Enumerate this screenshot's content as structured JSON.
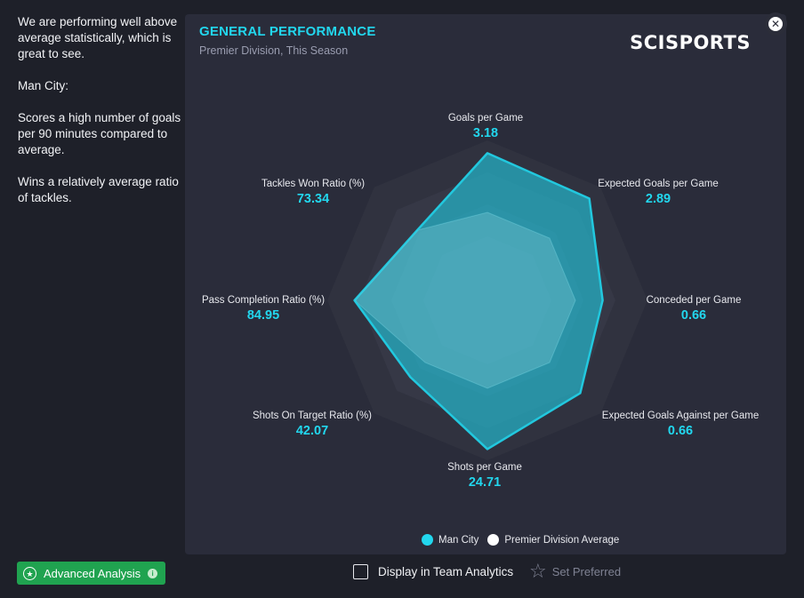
{
  "sidebar": {
    "paragraphs": [
      "We are performing well above average statistically, which is great to see.",
      "Man City:",
      "Scores a high number of goals per 90 minutes compared to average.",
      "Wins a relatively average ratio of tackles."
    ]
  },
  "panel": {
    "title": "GENERAL PERFORMANCE",
    "subtitle": "Premier Division, This Season",
    "brand": "SCISPORTS"
  },
  "radar": {
    "axes": [
      {
        "label": "Goals per Game",
        "value": "3.18"
      },
      {
        "label": "Expected Goals per Game",
        "value": "2.89"
      },
      {
        "label": "Conceded per Game",
        "value": "0.66"
      },
      {
        "label": "Expected Goals Against per Game",
        "value": "0.66"
      },
      {
        "label": "Shots per Game",
        "value": "24.71"
      },
      {
        "label": "Shots On Target Ratio (%)",
        "value": "42.07"
      },
      {
        "label": "Pass Completion Ratio (%)",
        "value": "84.95"
      },
      {
        "label": "Tackles Won Ratio (%)",
        "value": "73.34"
      }
    ],
    "team_levels": [
      0.92,
      0.9,
      0.72,
      0.82,
      0.93,
      0.68,
      0.83,
      0.62
    ],
    "average_levels": [
      0.55,
      0.55,
      0.55,
      0.55,
      0.55,
      0.55,
      0.83,
      0.62
    ],
    "colors": {
      "team": "#22c8de",
      "average": "#ffffff"
    }
  },
  "legend": {
    "team": "Man City",
    "average": "Premier Division Average"
  },
  "footer": {
    "advanced_label": "Advanced Analysis",
    "display_label": "Display in Team Analytics",
    "preferred_label": "Set Preferred"
  }
}
